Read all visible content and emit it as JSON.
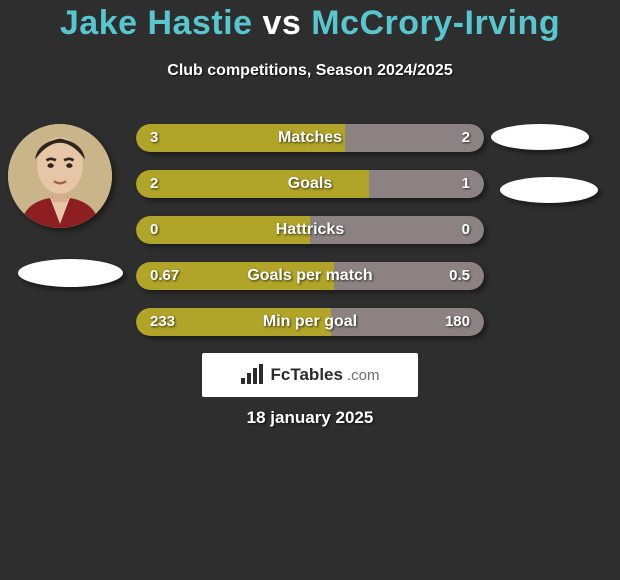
{
  "background_color": "#2e2e2e",
  "title": {
    "player1": "Jake Hastie",
    "vs": "vs",
    "player2": "McCrory-Irving",
    "player1_color": "#58c6cf",
    "vs_color": "#ffffff",
    "player2_color": "#58c6cf",
    "fontsize": 34
  },
  "subtitle": {
    "text": "Club competitions, Season 2024/2025",
    "color": "#ffffff",
    "fontsize": 16
  },
  "avatar_left": {
    "bg": "#cbb78a"
  },
  "ellipse_color": "#ffffff",
  "bar_chart": {
    "left_color": "#b0a429",
    "right_color": "#8c8283",
    "text_color": "#ffffff",
    "pill_height": 28,
    "pill_radius": 14,
    "bar_gap": 18,
    "label_fontsize": 16,
    "value_fontsize": 15,
    "rows": [
      {
        "label": "Matches",
        "left_val": "3",
        "right_val": "2",
        "left_pct": 60
      },
      {
        "label": "Goals",
        "left_val": "2",
        "right_val": "1",
        "left_pct": 67
      },
      {
        "label": "Hattricks",
        "left_val": "0",
        "right_val": "0",
        "left_pct": 50
      },
      {
        "label": "Goals per match",
        "left_val": "0.67",
        "right_val": "0.5",
        "left_pct": 57
      },
      {
        "label": "Min per goal",
        "left_val": "233",
        "right_val": "180",
        "left_pct": 56
      }
    ]
  },
  "logo": {
    "bg": "#ffffff",
    "brand": "FcTables",
    "brand_color": "#2b2b2b",
    "dotcom": ".com",
    "dotcom_color": "#6e6e6e",
    "icon_color": "#2b2b2b"
  },
  "date": {
    "text": "18 january 2025",
    "color": "#ffffff",
    "fontsize": 17
  }
}
